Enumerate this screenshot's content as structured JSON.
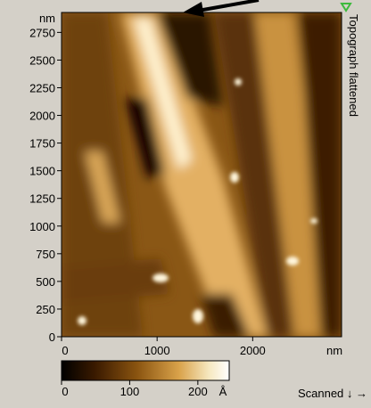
{
  "y_axis": {
    "unit": "nm",
    "range": [
      0,
      2930
    ],
    "ticks": [
      0,
      250,
      500,
      750,
      1000,
      1250,
      1500,
      1750,
      2000,
      2250,
      2500,
      2750
    ]
  },
  "x_axis": {
    "unit": "nm",
    "range": [
      0,
      2930
    ],
    "ticks": [
      0,
      1000,
      2000
    ]
  },
  "image_label": "Topograph flattened",
  "colorbar": {
    "unit": "Å",
    "range": [
      0,
      246
    ],
    "ticks": [
      0,
      100,
      200
    ]
  },
  "scan_label": "Scanned ↓ →"
}
